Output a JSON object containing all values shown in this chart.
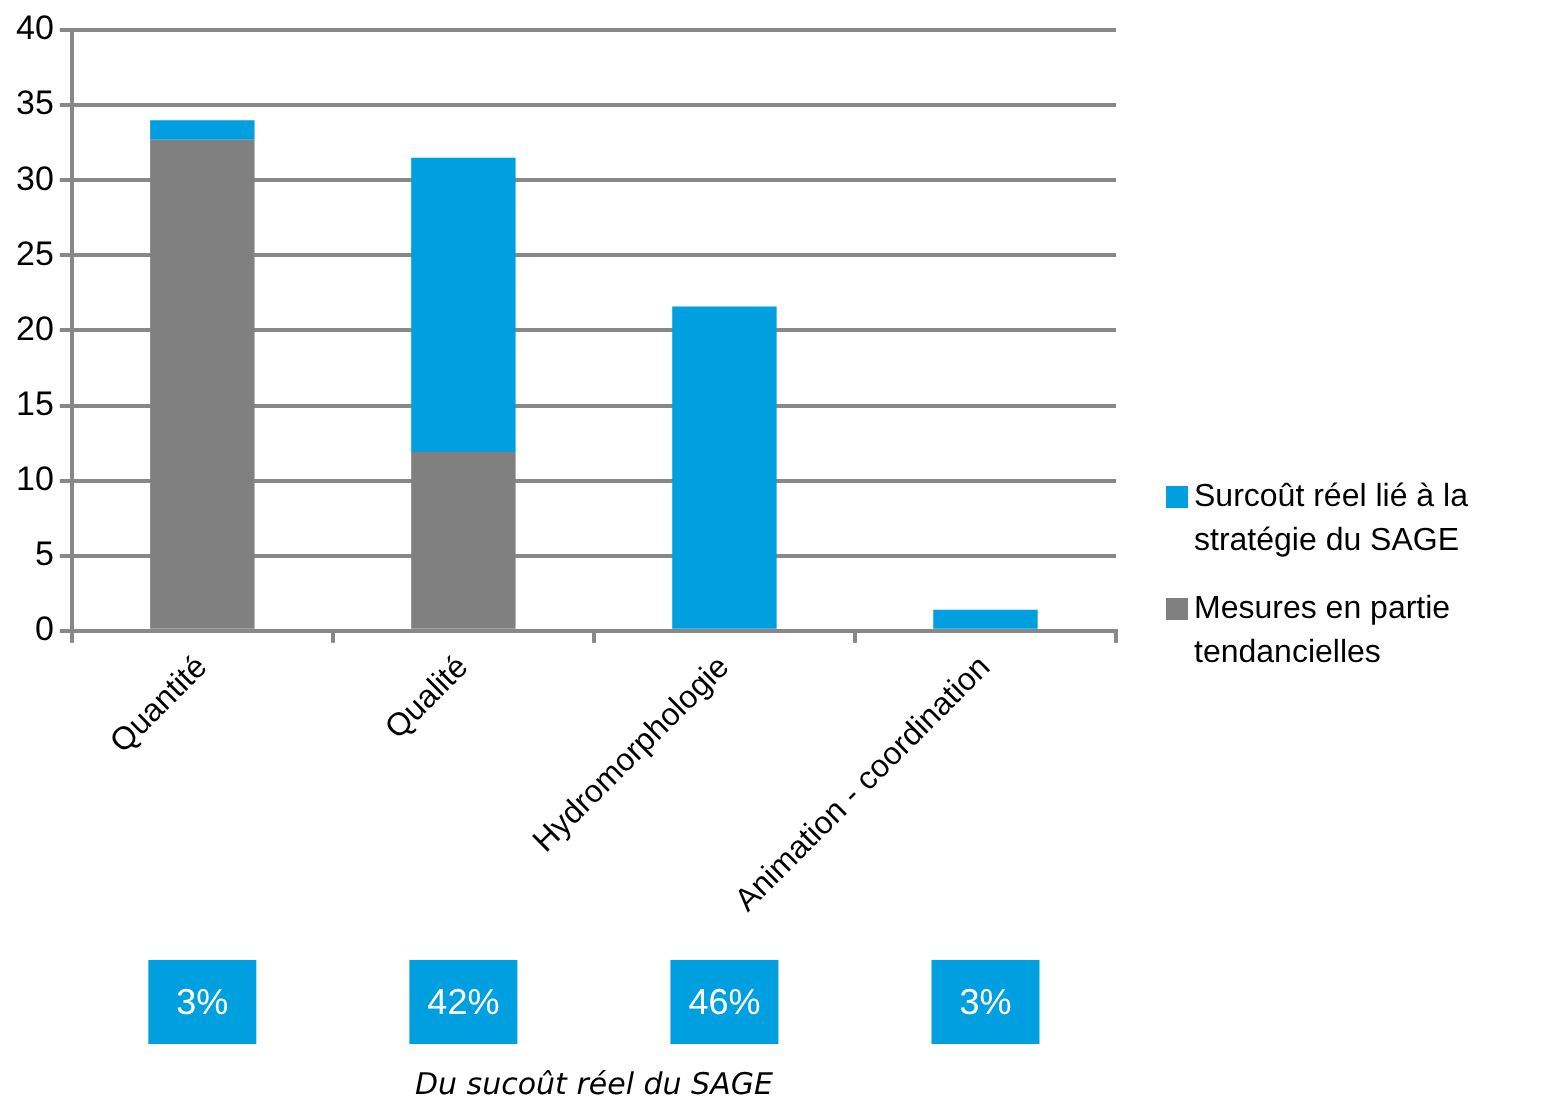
{
  "chart_data": {
    "type": "bar",
    "stacked": true,
    "categories": [
      "Quantité",
      "Qualité",
      "Hydromorphologie",
      "Animation - coordination"
    ],
    "series": [
      {
        "name": "Mesures en partie tendancielles",
        "color": "#808080",
        "values": [
          32.7,
          11.9,
          null,
          null
        ]
      },
      {
        "name": "Surcoût réel lié à la stratégie du SAGE",
        "color": "#009fdf",
        "values": [
          1.3,
          19.6,
          21.6,
          1.4
        ]
      }
    ],
    "ylim": [
      0,
      40
    ],
    "yticks": [
      0,
      5,
      10,
      15,
      20,
      25,
      30,
      35,
      40
    ],
    "grid": "y",
    "legend": "right",
    "annotations": [
      "3%",
      "42%",
      "46%",
      "3%",
      "Du sucoût réel du SAGE"
    ]
  }
}
